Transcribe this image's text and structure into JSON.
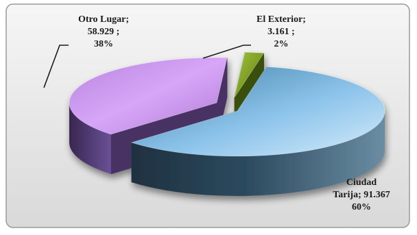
{
  "chart_data": {
    "type": "pie",
    "style": "3d-exploded",
    "slices": [
      {
        "name": "Ciudad Tarija",
        "value": 91367,
        "value_text": "91.367",
        "percent": 60,
        "percent_text": "60%",
        "color": "#8fc6ef"
      },
      {
        "name": "Otro Lugar",
        "value": 58929,
        "value_text": "58.929 ;",
        "percent": 38,
        "percent_text": "38%",
        "color": "#c990ee"
      },
      {
        "name": "El Exterior",
        "value": 3161,
        "value_text": "3.161 ;",
        "percent": 2,
        "percent_text": "2%",
        "color": "#7ea21a"
      }
    ],
    "labels": {
      "ciudad": {
        "line1": "Ciudad",
        "line2": "Tarija;  91.367",
        "line3": "60%"
      },
      "otro": {
        "line1": "Otro Lugar;",
        "line2": "58.929 ;",
        "line3": "38%"
      },
      "exterior": {
        "line1": "El Exterior;",
        "line2": "3.161 ;",
        "line3": "2%"
      }
    },
    "legend": "none"
  }
}
